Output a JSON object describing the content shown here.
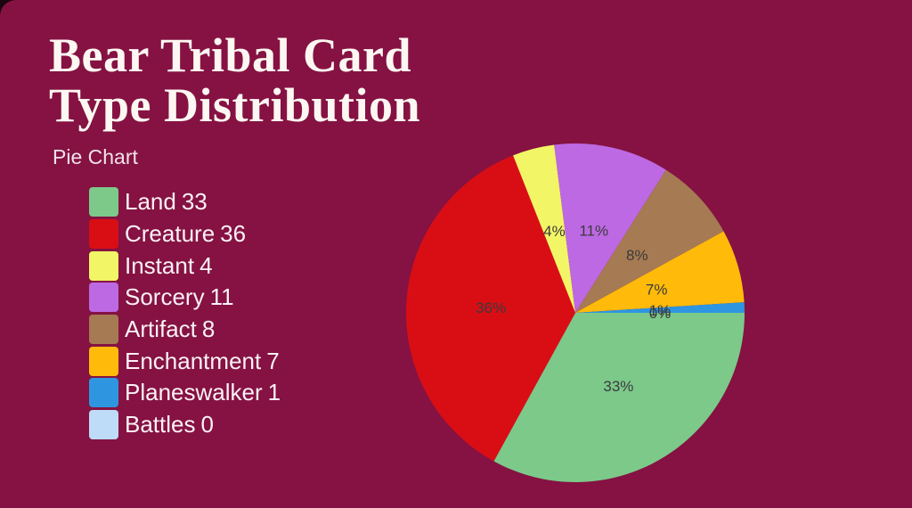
{
  "page": {
    "background_color": "#851242"
  },
  "chart_data": {
    "type": "pie",
    "title": "Bear Tribal Card Type Distribution",
    "subtitle": "Pie Chart",
    "categories": [
      "Land",
      "Creature",
      "Instant",
      "Sorcery",
      "Artifact",
      "Enchantment",
      "Planeswalker",
      "Battles"
    ],
    "values": [
      33,
      36,
      4,
      11,
      8,
      7,
      1,
      0
    ],
    "percent_labels": [
      "33%",
      "36%",
      "4%",
      "11%",
      "8%",
      "7%",
      "1%",
      "0%"
    ],
    "colors": [
      "#7cc98a",
      "#d90e15",
      "#f2f566",
      "#bd69e3",
      "#a67a52",
      "#ffba0a",
      "#2e96e1",
      "#bedcf7"
    ],
    "start_angle_deg": 0,
    "direction": "clockwise",
    "pct_distance": 0.5,
    "label_color": "#3b3b3b",
    "legend_position": "left",
    "total": 100
  }
}
